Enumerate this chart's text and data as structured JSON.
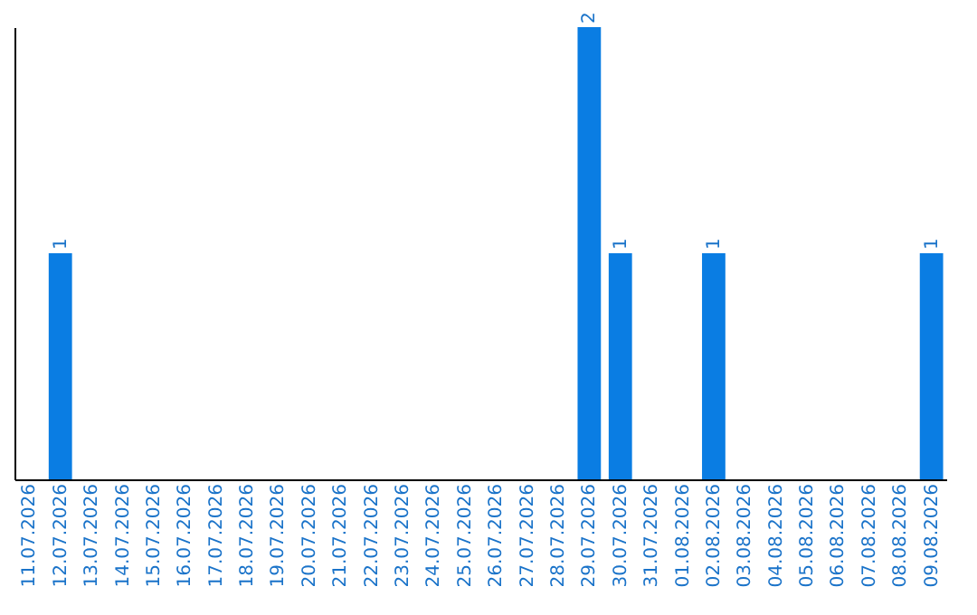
{
  "chart_data": {
    "type": "bar",
    "categories": [
      "11.07.2026",
      "12.07.2026",
      "13.07.2026",
      "14.07.2026",
      "15.07.2026",
      "16.07.2026",
      "17.07.2026",
      "18.07.2026",
      "19.07.2026",
      "20.07.2026",
      "21.07.2026",
      "22.07.2026",
      "23.07.2026",
      "24.07.2026",
      "25.07.2026",
      "26.07.2026",
      "27.07.2026",
      "28.07.2026",
      "29.07.2026",
      "30.07.2026",
      "31.07.2026",
      "01.08.2026",
      "02.08.2026",
      "03.08.2026",
      "04.08.2026",
      "05.08.2026",
      "06.08.2026",
      "07.08.2026",
      "08.08.2026",
      "09.08.2026"
    ],
    "values": [
      0,
      1,
      0,
      0,
      0,
      0,
      0,
      0,
      0,
      0,
      0,
      0,
      0,
      0,
      0,
      0,
      0,
      0,
      2,
      1,
      0,
      0,
      1,
      0,
      0,
      0,
      0,
      0,
      0,
      1
    ],
    "value_labels": [
      null,
      "1",
      null,
      null,
      null,
      null,
      null,
      null,
      null,
      null,
      null,
      null,
      null,
      null,
      null,
      null,
      null,
      null,
      "2",
      "1",
      null,
      null,
      "1",
      null,
      null,
      null,
      null,
      null,
      null,
      "1"
    ],
    "color": "#0a7de3",
    "ylim": [
      0,
      2
    ],
    "tick_labels": "x",
    "grid": false
  }
}
